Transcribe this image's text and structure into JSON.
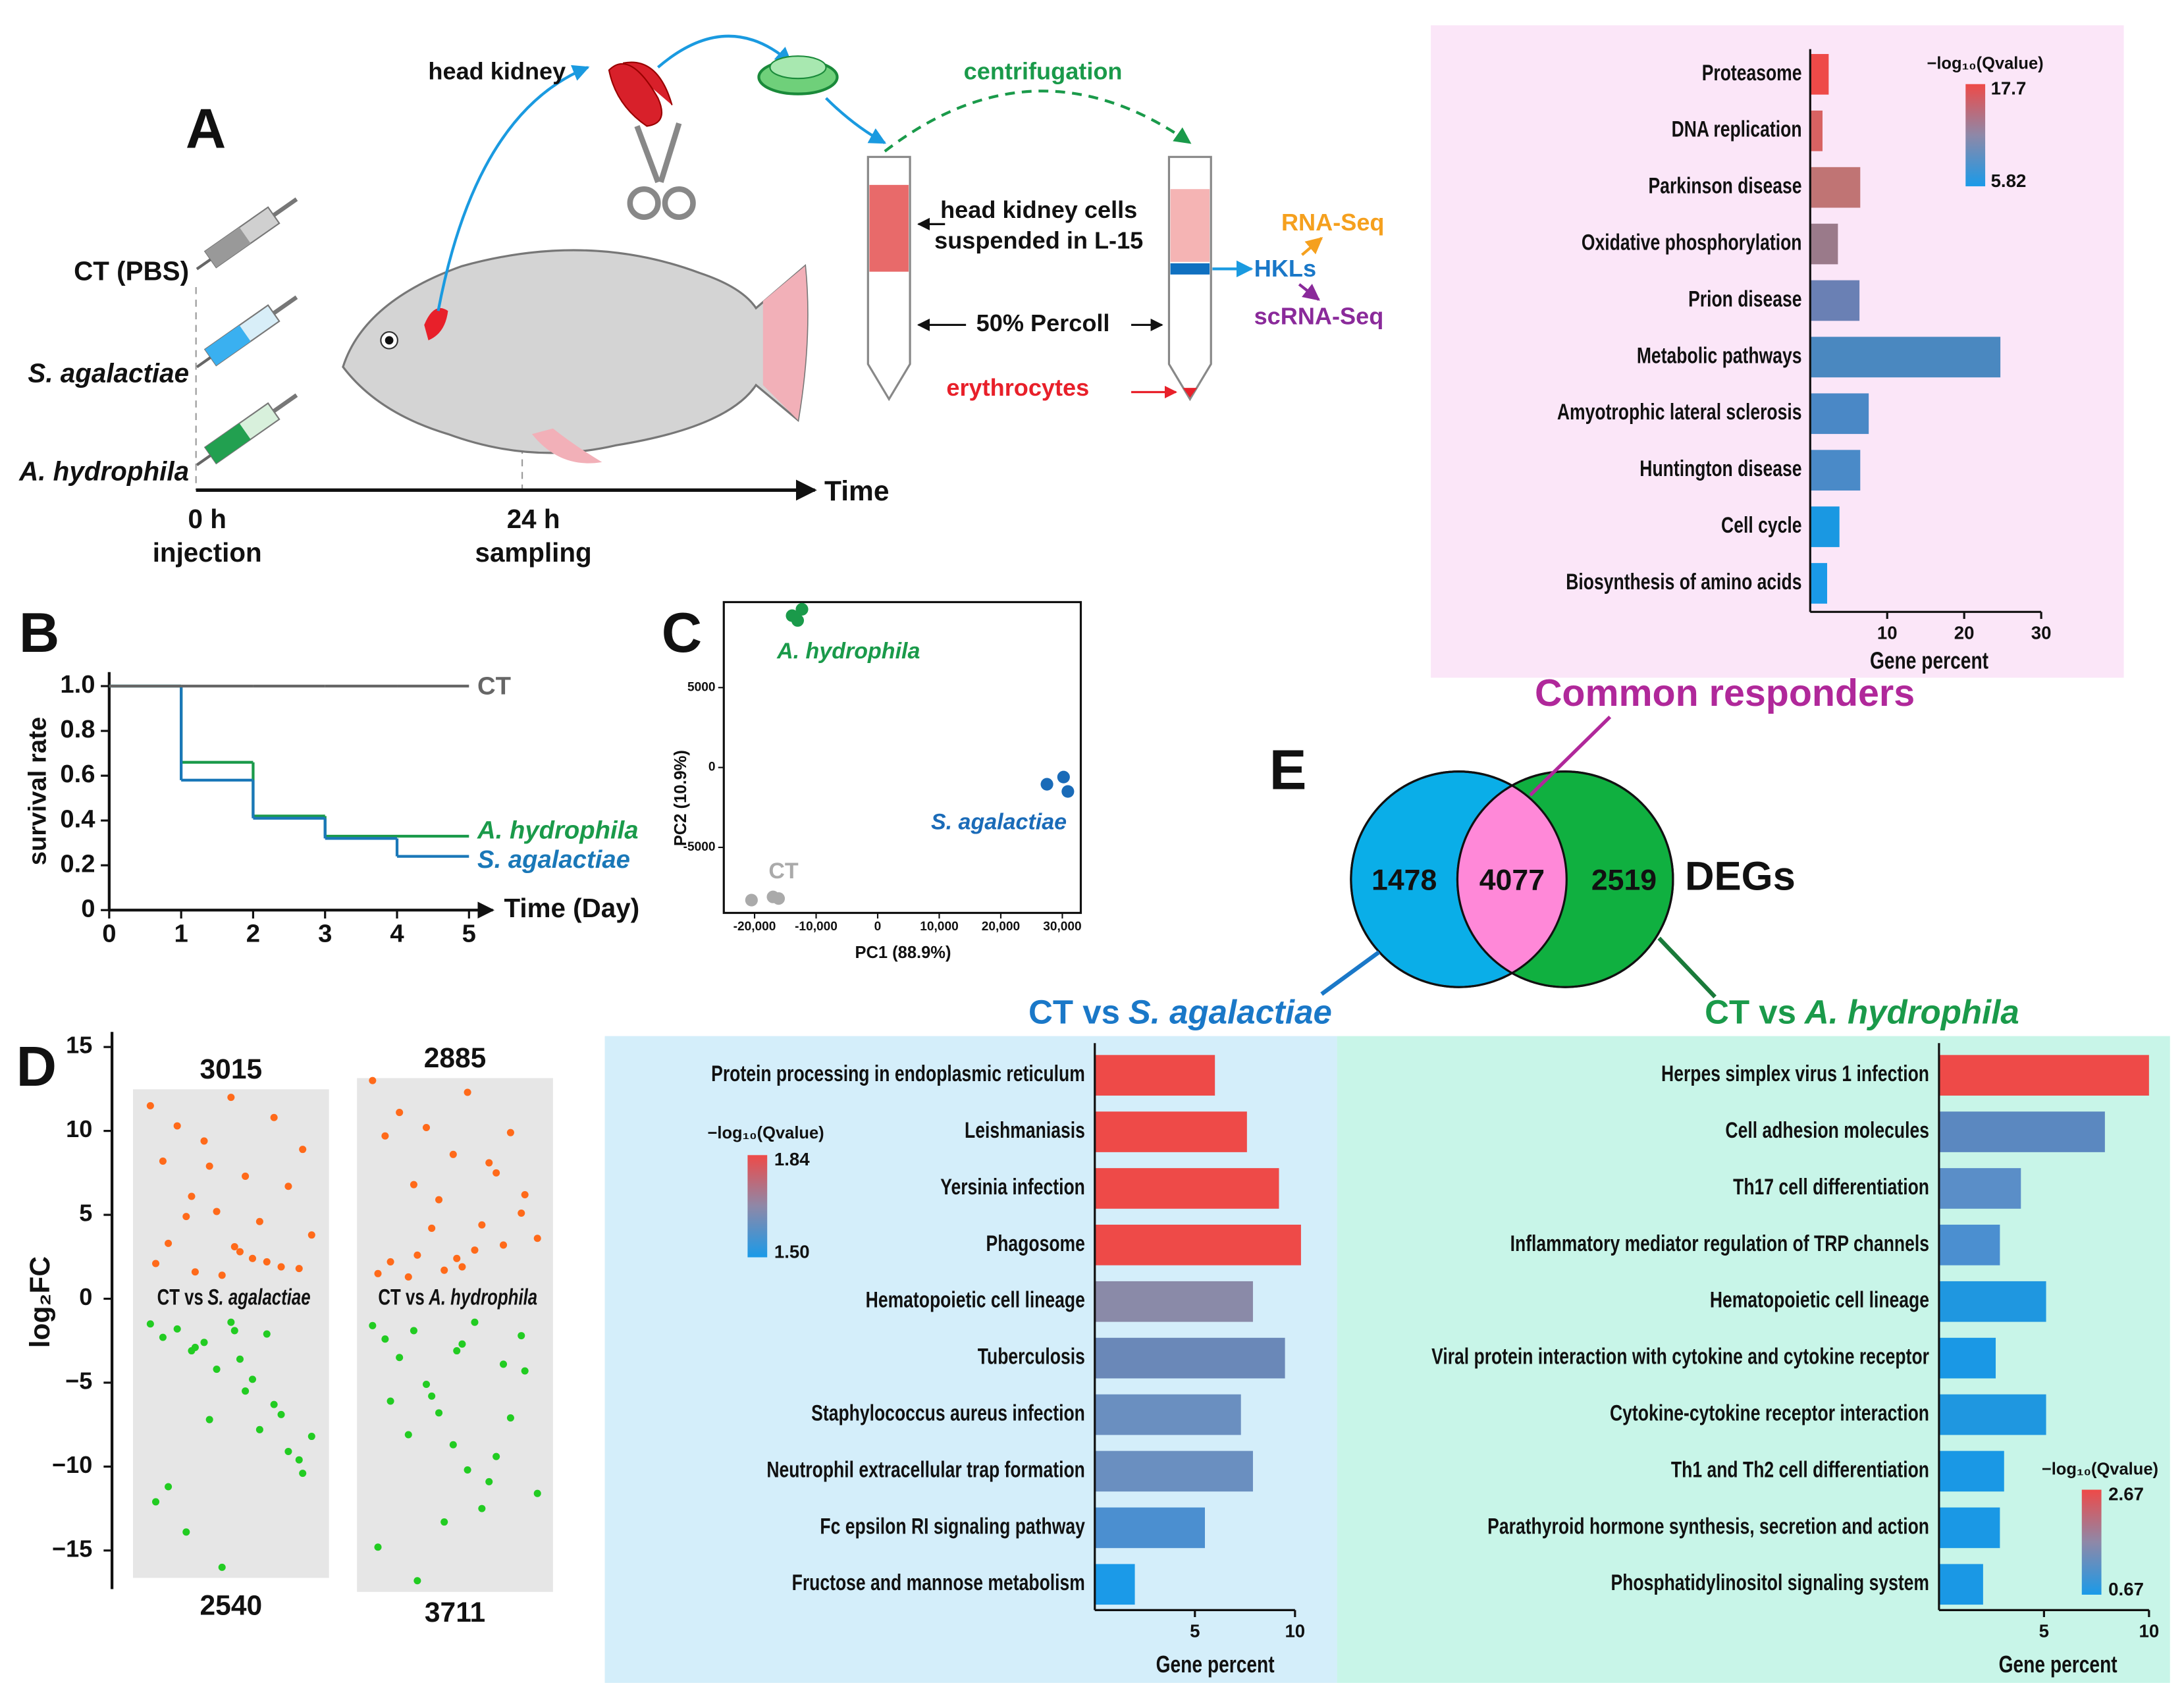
{
  "diagram": {
    "letter": "A",
    "head_kidney": "head kidney",
    "centrifugation": "centrifugation",
    "cells": [
      "head kidney cells",
      "suspended in L-15"
    ],
    "percoll": "50% Percoll",
    "erythrocytes": "erythrocytes",
    "rna_seq": "RNA-Seq",
    "hkls": "HKLs",
    "scrna_seq": "scRNA-Seq",
    "groups": [
      "CT (PBS)",
      "S. agalactiae",
      "A. hydrophila"
    ],
    "times": [
      {
        "time": "0 h",
        "event": "injection"
      },
      {
        "time": "24 h",
        "event": "sampling"
      }
    ],
    "axis": "Time"
  },
  "venn": {
    "letter": "E",
    "left": 1478,
    "both": 4077,
    "right": 2519,
    "label": "DEGs",
    "common": "Common responders",
    "left_label": {
      "prefix": "CT vs",
      "name": "S. agalactiae"
    },
    "right_label": {
      "prefix": "CT vs",
      "name": "A. hydrophila"
    }
  },
  "chart_data": [
    {
      "type": "hbar",
      "categories": [
        "Proteasome",
        "DNA replication",
        "Parkinson disease",
        "Oxidative phosphorylation",
        "Prion disease",
        "Metabolic pathways",
        "Amyotrophic lateral sclerosis",
        "Huntington disease",
        "Cell cycle",
        "Biosynthesis of amino acids"
      ],
      "values": [
        2.4,
        1.6,
        6.5,
        3.6,
        6.4,
        24.7,
        7.6,
        6.5,
        3.8,
        2.2
      ],
      "colors": [
        "#ee4a48",
        "#d86262",
        "#c07474",
        "#9a7a8a",
        "#6a80b4",
        "#4a88c0",
        "#4a88c6",
        "#4a8ac8",
        "#1a98e2",
        "#1a9ae8"
      ],
      "xlim": [
        0,
        30
      ],
      "xticks": [
        10,
        20,
        30
      ],
      "xlabel": "Gene percent",
      "colorbar": {
        "title": "−log₁₀(Qvalue)",
        "max": 17.7,
        "min": 5.82,
        "colors": [
          "#ee4a48",
          "#8e88a8",
          "#1a9ae8"
        ]
      }
    },
    {
      "type": "step",
      "letter": "B",
      "x": [
        0,
        1,
        2,
        3,
        4
      ],
      "series": [
        {
          "name": "A. hydrophila",
          "color": "#1a9a4a",
          "values": [
            1,
            0.66,
            0.42,
            0.33,
            0.33
          ]
        },
        {
          "name": "S. agalactiae",
          "color": "#1a78b8",
          "values": [
            1,
            0.58,
            0.41,
            0.32,
            0.24
          ]
        },
        {
          "name": "CT",
          "color": "#666666",
          "values": [
            1,
            1,
            1,
            1,
            1
          ]
        }
      ],
      "xlim": [
        0,
        5
      ],
      "ylim": [
        0,
        1
      ],
      "xticks": [
        0,
        1,
        2,
        3,
        4,
        5
      ],
      "yticks": [
        0,
        0.2,
        0.4,
        0.6,
        0.8,
        {
          "value": 1,
          "label": "1.0"
        }
      ],
      "xlabel": "Time (Day)",
      "ylabel": "survival rate"
    },
    {
      "type": "scatter",
      "letter": "C",
      "series": [
        {
          "name": "A. hydrophila",
          "color": "#1a9a4a",
          "x": [
            -13900,
            -12300,
            -13000
          ],
          "values": [
            9500,
            9900,
            9200
          ]
        },
        {
          "name": "S. agalactiae",
          "color": "#1a6bb8",
          "x": [
            27500,
            30200,
            30900
          ],
          "values": [
            -1050,
            -600,
            -1500
          ]
        },
        {
          "name": "CT",
          "color": "#aaaaaa",
          "x": [
            -20500,
            -17000,
            -16100
          ],
          "values": [
            -8300,
            -8100,
            -8200
          ]
        }
      ],
      "xlim": [
        -25000,
        33000
      ],
      "ylim": [
        -9100,
        10350
      ],
      "xticks": [
        {
          "value": -20000,
          "label": "-20,000"
        },
        {
          "value": -10000,
          "label": "-10,000"
        },
        0,
        {
          "value": 10000,
          "label": "10,000"
        },
        {
          "value": 20000,
          "label": "20,000"
        },
        {
          "value": 30000,
          "label": "30,000"
        }
      ],
      "yticks": [
        -5000,
        0,
        5000
      ],
      "xlabel": "PC1 (88.9%)",
      "ylabel": "PC2 (10.9%)"
    },
    {
      "type": "strip",
      "letter": "D",
      "ylabel": "log₂FC",
      "ylim": [
        -17.3,
        15.9
      ],
      "yticks": [
        {
          "value": -15,
          "label": "−15"
        },
        {
          "value": -10,
          "label": "−10"
        },
        {
          "value": -5,
          "label": "−5"
        },
        0,
        5,
        10,
        15
      ],
      "groups": [
        {
          "prefix": "CT vs",
          "name": "S. agalactiae",
          "up_count": 3015,
          "down_count": 2540,
          "up": {
            "color": "#ff6a1a",
            "x": [
              0.05,
              0.12,
              0.2,
              0.28,
              0.35,
              0.42,
              0.5,
              0.58,
              0.66,
              0.74,
              0.82,
              0.9,
              0.95,
              0.08,
              0.3,
              0.55,
              0.78,
              0.15,
              0.45,
              0.62,
              0.88,
              0.25,
              0.7,
              0.38,
              0.52
            ],
            "values": [
              11.5,
              8.2,
              10.3,
              6.1,
              9.4,
              5.2,
              12,
              7.3,
              4.6,
              10.8,
              6.7,
              8.9,
              3.8,
              2.1,
              1.6,
              2.8,
              1.9,
              3.3,
              1.4,
              2.4,
              1.8,
              4.9,
              2.2,
              7.9,
              3.1
            ]
          },
          "down": {
            "color": "#22cc22",
            "x": [
              0.05,
              0.12,
              0.2,
              0.28,
              0.35,
              0.42,
              0.5,
              0.58,
              0.66,
              0.74,
              0.82,
              0.9,
              0.95,
              0.08,
              0.3,
              0.55,
              0.78,
              0.15,
              0.45,
              0.62,
              0.88,
              0.25,
              0.7,
              0.38,
              0.52
            ],
            "values": [
              -1.5,
              -2.3,
              -1.8,
              -3.1,
              -2.6,
              -4.2,
              -1.4,
              -5.5,
              -7.8,
              -6.3,
              -9.1,
              -10.4,
              -8.2,
              -12.1,
              -2.9,
              -3.6,
              -6.9,
              -11.2,
              -16,
              -4.8,
              -9.6,
              -13.9,
              -2.1,
              -7.2,
              -1.9
            ]
          }
        },
        {
          "prefix": "CT vs",
          "name": "A. hydrophila",
          "up_count": 2885,
          "down_count": 3711,
          "up": {
            "color": "#ff6a1a",
            "x": [
              0.04,
              0.11,
              0.19,
              0.27,
              0.34,
              0.41,
              0.49,
              0.57,
              0.65,
              0.73,
              0.81,
              0.89,
              0.96,
              0.07,
              0.29,
              0.54,
              0.77,
              0.14,
              0.44,
              0.61,
              0.87,
              0.24,
              0.69,
              0.37,
              0.51
            ],
            "values": [
              13,
              9.7,
              11.1,
              6.8,
              10.2,
              5.9,
              8.6,
              12.3,
              4.4,
              7.5,
              9.9,
              6.2,
              3.6,
              1.5,
              2.6,
              1.9,
              3.2,
              2.2,
              1.7,
              2.9,
              5.1,
              1.3,
              8.1,
              4.2,
              2.4
            ]
          },
          "down": {
            "color": "#22cc22",
            "x": [
              0.04,
              0.11,
              0.19,
              0.27,
              0.34,
              0.41,
              0.49,
              0.57,
              0.65,
              0.73,
              0.81,
              0.89,
              0.96,
              0.07,
              0.29,
              0.54,
              0.77,
              0.14,
              0.44,
              0.61,
              0.87,
              0.24,
              0.69,
              0.37,
              0.51
            ],
            "values": [
              -1.6,
              -2.4,
              -3.5,
              -1.9,
              -5.1,
              -6.8,
              -8.7,
              -10.2,
              -12.5,
              -9.4,
              -7.1,
              -4.3,
              -11.6,
              -14.8,
              -16.8,
              -2.7,
              -3.9,
              -6.1,
              -13.3,
              -1.4,
              -2.2,
              -8.1,
              -10.9,
              -5.8,
              -3.1
            ]
          }
        }
      ]
    },
    {
      "type": "hbar",
      "categories": [
        "Protein processing in endoplasmic reticulum",
        "Leishmaniasis",
        "Yersinia infection",
        "Phagosome",
        "Hematopoietic cell lineage",
        "Tuberculosis",
        "Staphylococcus aureus infection",
        "Neutrophil extracellular trap formation",
        "Fc epsilon RI signaling pathway",
        "Fructose and mannose metabolism"
      ],
      "values": [
        6.0,
        7.6,
        9.2,
        10.3,
        7.9,
        9.5,
        7.3,
        7.9,
        5.5,
        2.0
      ],
      "colors": [
        "#ee4a48",
        "#ee4a48",
        "#ee4a48",
        "#ee4a48",
        "#8a8aa8",
        "#6a88b8",
        "#6a8fc0",
        "#6a8fc0",
        "#4b8fd0",
        "#1b9ae8"
      ],
      "xlim": [
        0,
        10
      ],
      "xticks": [
        5,
        10
      ],
      "xlabel": "Gene percent",
      "colorbar": {
        "title": "−log₁₀(Qvalue)",
        "max": 1.84,
        "min": {
          "value": 1.5,
          "label": "1.50"
        },
        "colors": [
          "#ee4a48",
          "#8e88a8",
          "#1a9ae8"
        ]
      }
    },
    {
      "type": "hbar",
      "categories": [
        "Herpes simplex virus 1 infection",
        "Cell adhesion molecules",
        "Th17 cell differentiation",
        "Inflammatory mediator regulation of TRP channels",
        "Hematopoietic cell lineage",
        "Viral protein interaction with cytokine and cytokine receptor",
        "Cytokine-cytokine receptor interaction",
        "Th1 and Th2 cell differentiation",
        "Parathyroid hormone synthesis, secretion and action",
        "Phosphatidylinositol signaling system"
      ],
      "values": [
        10.0,
        7.9,
        3.9,
        2.9,
        5.1,
        2.7,
        5.1,
        3.1,
        2.9,
        2.1
      ],
      "colors": [
        "#ee4a48",
        "#5b88c0",
        "#5a8ec8",
        "#4b8fd0",
        "#1f97e0",
        "#1a98e5",
        "#1f97e0",
        "#1a98e5",
        "#1a98e5",
        "#1a98e5"
      ],
      "xlim": [
        0,
        10
      ],
      "xticks": [
        5,
        10
      ],
      "xlabel": "Gene percent",
      "colorbar": {
        "title": "−log₁₀(Qvalue)",
        "max": 2.67,
        "min": 0.67,
        "colors": [
          "#ee4a48",
          "#8e88a8",
          "#1a9ae8"
        ]
      }
    }
  ]
}
